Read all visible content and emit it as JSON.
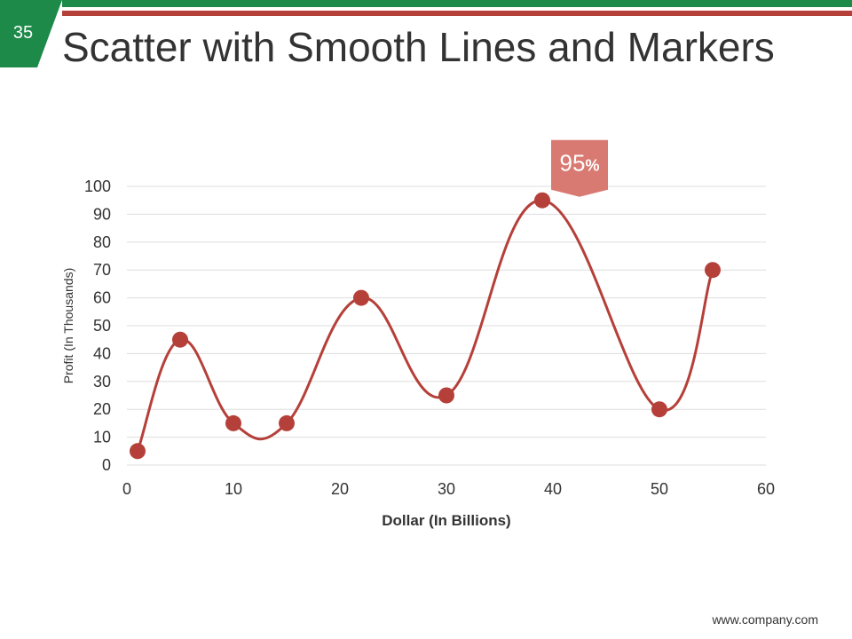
{
  "slide": {
    "number": "35",
    "title": "Scatter with Smooth Lines and Markers",
    "footer": "www.company.com"
  },
  "colors": {
    "green": "#1e8a4a",
    "red": "#b5403a",
    "callout": "#d97a72",
    "grid": "#dddddd"
  },
  "chart_data": {
    "type": "scatter",
    "smooth": true,
    "markers": true,
    "title": "Scatter with Smooth Lines and Markers",
    "xlabel": "Dollar (In Billions)",
    "ylabel": "Profit  (In Thousands)",
    "xlim": [
      0,
      60
    ],
    "ylim": [
      0,
      100
    ],
    "x_ticks": [
      0,
      10,
      20,
      30,
      40,
      50,
      60
    ],
    "y_ticks": [
      0,
      10,
      20,
      30,
      40,
      50,
      60,
      70,
      80,
      90,
      100
    ],
    "grid": "horizontal",
    "series": [
      {
        "x": [
          1,
          5,
          10,
          15,
          22,
          30,
          39,
          50,
          55
        ],
        "y": [
          5,
          45,
          15,
          15,
          60,
          25,
          95,
          20,
          70
        ]
      }
    ],
    "callout": {
      "value": "95",
      "unit": "%",
      "point_index": 6
    }
  }
}
